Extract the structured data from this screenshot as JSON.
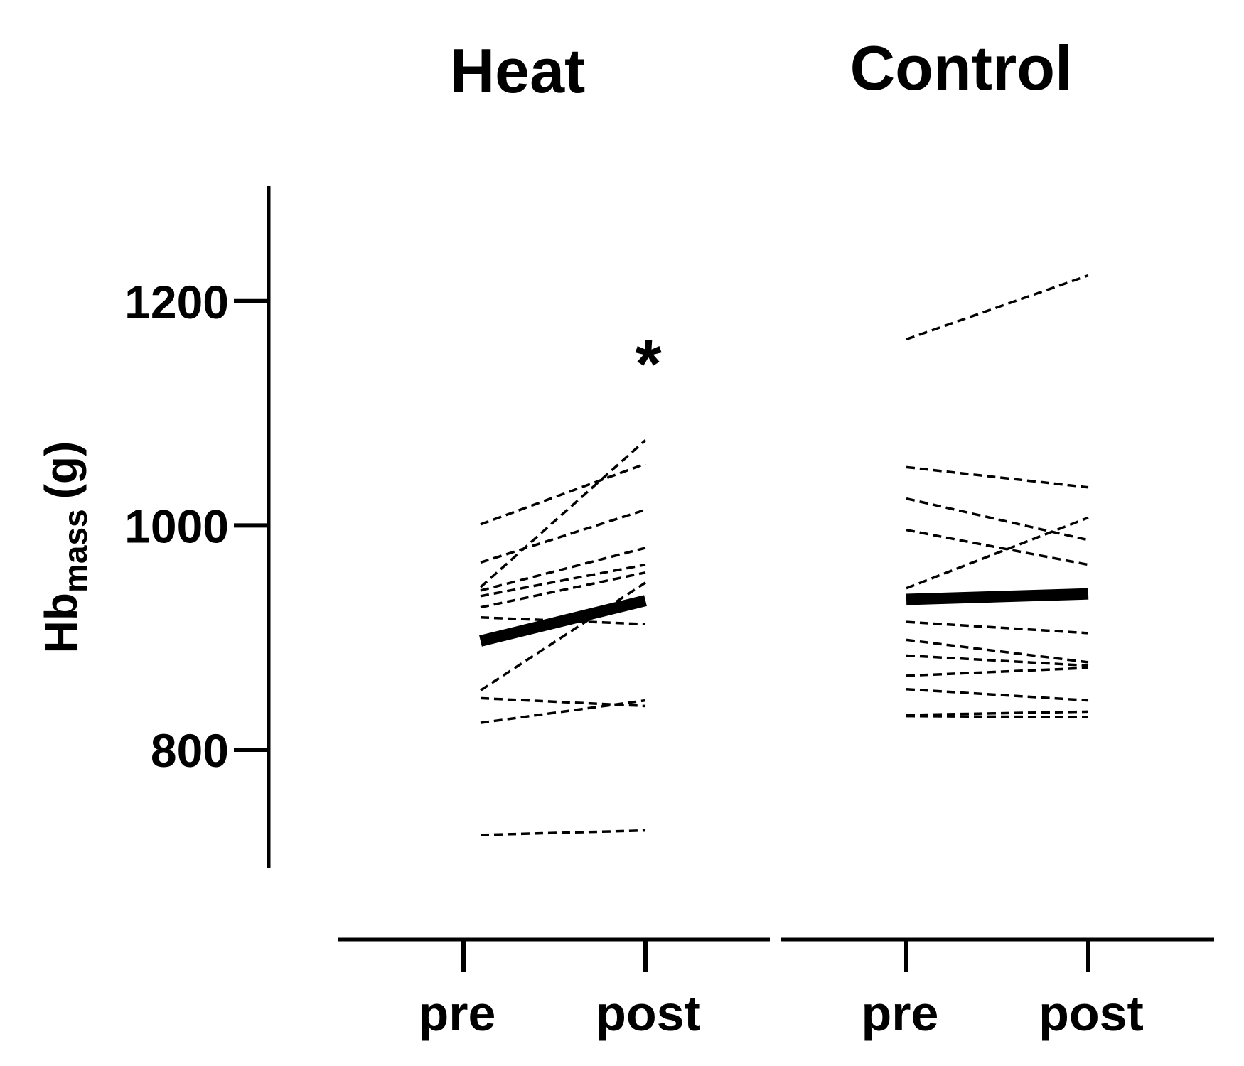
{
  "chart_data": {
    "type": "line",
    "ylabel": "Hb",
    "ylabel_sub": "mass",
    "ylabel_unit": "(g)",
    "yticks": [
      800,
      1000,
      1200
    ],
    "ylim": [
      700,
      1305
    ],
    "grid": false,
    "color": "#000000",
    "panels": [
      {
        "title": "Heat",
        "categories": [
          "pre",
          "post"
        ],
        "annotation": "*",
        "mean": [
          897,
          933
        ],
        "individuals": [
          [
            1001,
            1055
          ],
          [
            967,
            1014
          ],
          [
            945,
            1076
          ],
          [
            942,
            980
          ],
          [
            937,
            965
          ],
          [
            927,
            958
          ],
          [
            918,
            912
          ],
          [
            853,
            949
          ],
          [
            846,
            839
          ],
          [
            824,
            844
          ],
          [
            724,
            728
          ]
        ]
      },
      {
        "title": "Control",
        "categories": [
          "pre",
          "post"
        ],
        "annotation": "",
        "mean": [
          934,
          939
        ],
        "individuals": [
          [
            1166,
            1223
          ],
          [
            1052,
            1034
          ],
          [
            1024,
            987
          ],
          [
            996,
            965
          ],
          [
            944,
            1007
          ],
          [
            914,
            904
          ],
          [
            898,
            878
          ],
          [
            884,
            875
          ],
          [
            866,
            873
          ],
          [
            854,
            844
          ],
          [
            831,
            834
          ],
          [
            830,
            829
          ]
        ]
      }
    ]
  }
}
